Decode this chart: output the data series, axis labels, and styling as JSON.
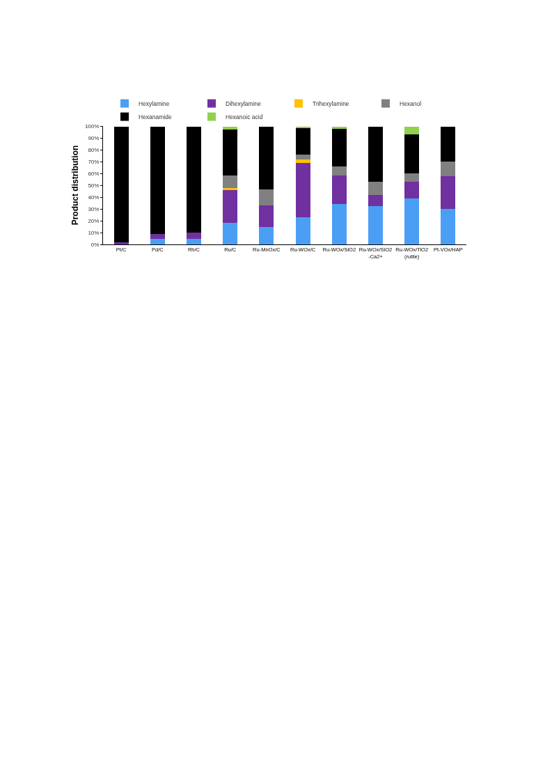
{
  "chart_data": {
    "type": "bar",
    "stacked": true,
    "ylabel": "Product distribution",
    "categories": [
      "Pt/C",
      "Pd/C",
      "Rh/C",
      "Ru/C",
      "Ru-MnOx/C",
      "Ru-WOx/C",
      "Ru-WOx/SiO2",
      "Ru-WOx/SiO2-Ca2+",
      "Ru-WOx/TiO2 (rutile)",
      "Pt-VOx/HAP"
    ],
    "series": [
      {
        "name": "Hexylamine",
        "color": "#4a9ff5",
        "values": [
          null,
          5,
          4.5,
          18.3,
          14.6,
          22.8,
          33.9,
          32.6,
          38.6,
          29.8
        ]
      },
      {
        "name": "Dihexylamine",
        "color": "#7030a0",
        "values": [
          1.6,
          4,
          5.5,
          27.3,
          18.5,
          46,
          24.6,
          9.3,
          14.6,
          27.7
        ]
      },
      {
        "name": "Trihexylamine",
        "color": "#ffc000",
        "values": [
          null,
          null,
          null,
          2.2,
          null,
          2.7,
          null,
          null,
          null,
          null
        ]
      },
      {
        "name": "Hexanol",
        "color": "#808080",
        "values": [
          null,
          null,
          null,
          10.5,
          13.5,
          4.5,
          7.4,
          11.1,
          6.6,
          12.3
        ]
      },
      {
        "name": "Hexanamide",
        "color": "#000000",
        "values": [
          98.4,
          91,
          90,
          38.6,
          53.4,
          22,
          31.8,
          47,
          33.4,
          30.2
        ]
      },
      {
        "name": "Hexanoic acid",
        "color": "#92d050",
        "values": [
          null,
          null,
          null,
          3.1,
          null,
          2,
          2.3,
          null,
          6.8,
          null
        ]
      }
    ],
    "ylim": [
      0,
      100
    ],
    "yticks": [
      {
        "value": 0,
        "label": "0%"
      },
      {
        "value": 10,
        "label": "10%"
      },
      {
        "value": 20,
        "label": "20%"
      },
      {
        "value": 30,
        "label": "30%"
      },
      {
        "value": 40,
        "label": "40%"
      },
      {
        "value": 50,
        "label": "50%"
      },
      {
        "value": 60,
        "label": "60%"
      },
      {
        "value": 70,
        "label": "70%"
      },
      {
        "value": 80,
        "label": "80%"
      },
      {
        "value": 90,
        "label": "90%"
      },
      {
        "value": 100,
        "label": "100%"
      }
    ],
    "grid": false,
    "legend": "top"
  }
}
